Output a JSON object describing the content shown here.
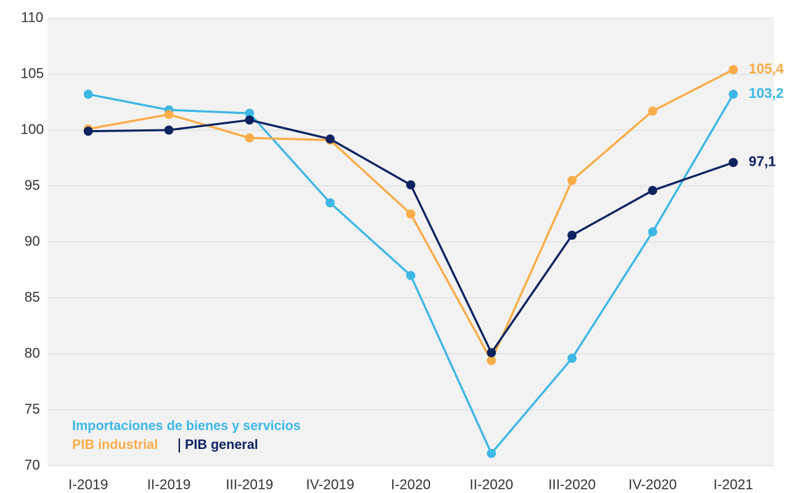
{
  "chart_data": {
    "type": "line",
    "categories": [
      "I-2019",
      "II-2019",
      "III-2019",
      "IV-2019",
      "I-2020",
      "II-2020",
      "III-2020",
      "IV-2020",
      "I-2021"
    ],
    "series": [
      {
        "name": "Importaciones de bienes y servicios",
        "color": "#3db7e4",
        "values": [
          103.2,
          101.8,
          101.5,
          93.5,
          87.0,
          71.1,
          79.6,
          90.9,
          103.2
        ],
        "value_labels": [
          null,
          null,
          null,
          null,
          null,
          null,
          null,
          null,
          "103,2"
        ]
      },
      {
        "name": "PIB industrial",
        "color": "#f9ac48",
        "values": [
          100.1,
          101.4,
          99.3,
          99.1,
          92.5,
          79.4,
          95.5,
          101.7,
          105.4
        ],
        "value_labels": [
          null,
          null,
          null,
          null,
          null,
          null,
          null,
          null,
          "105,4"
        ]
      },
      {
        "name": "PIB general",
        "color": "#0d2360",
        "values": [
          99.9,
          100.0,
          100.9,
          99.2,
          95.1,
          80.1,
          90.6,
          94.6,
          97.1
        ],
        "value_labels": [
          null,
          null,
          null,
          null,
          null,
          null,
          null,
          null,
          "97,1"
        ]
      }
    ],
    "ylim": [
      70,
      110
    ],
    "yticks": [
      70,
      75,
      80,
      85,
      90,
      95,
      100,
      105,
      110
    ],
    "grid": true
  }
}
